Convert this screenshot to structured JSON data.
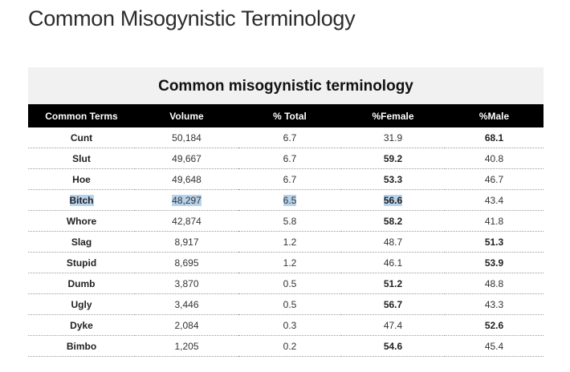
{
  "page": {
    "title": "Common Misogynistic Terminology"
  },
  "table": {
    "caption": "Common misogynistic terminology",
    "headers": [
      "Common Terms",
      "Volume",
      "% Total",
      "%Female",
      "%Male"
    ],
    "rows": [
      {
        "term": "Cunt",
        "volume": "50,184",
        "total": "6.7",
        "female": "31.9",
        "male": "68.1",
        "bold": "male"
      },
      {
        "term": "Slut",
        "volume": "49,667",
        "total": "6.7",
        "female": "59.2",
        "male": "40.8",
        "bold": "female"
      },
      {
        "term": "Hoe",
        "volume": "49,648",
        "total": "6.7",
        "female": "53.3",
        "male": "46.7",
        "bold": "female"
      },
      {
        "term": "Bitch",
        "volume": "48,297",
        "total": "6.5",
        "female": "56.6",
        "male": "43.4",
        "bold": "female",
        "highlighted": true
      },
      {
        "term": "Whore",
        "volume": "42,874",
        "total": "5.8",
        "female": "58.2",
        "male": "41.8",
        "bold": "female"
      },
      {
        "term": "Slag",
        "volume": "8,917",
        "total": "1.2",
        "female": "48.7",
        "male": "51.3",
        "bold": "male"
      },
      {
        "term": "Stupid",
        "volume": "8,695",
        "total": "1.2",
        "female": "46.1",
        "male": "53.9",
        "bold": "male"
      },
      {
        "term": "Dumb",
        "volume": "3,870",
        "total": "0.5",
        "female": "51.2",
        "male": "48.8",
        "bold": "female"
      },
      {
        "term": "Ugly",
        "volume": "3,446",
        "total": "0.5",
        "female": "56.7",
        "male": "43.3",
        "bold": "female"
      },
      {
        "term": "Dyke",
        "volume": "2,084",
        "total": "0.3",
        "female": "47.4",
        "male": "52.6",
        "bold": "male"
      },
      {
        "term": "Bimbo",
        "volume": "1,205",
        "total": "0.2",
        "female": "54.6",
        "male": "45.4",
        "bold": "female"
      }
    ]
  },
  "colors": {
    "header_bg": "#000000",
    "caption_bg": "#f1f1f1",
    "selection_highlight": "#b7d3ec"
  }
}
